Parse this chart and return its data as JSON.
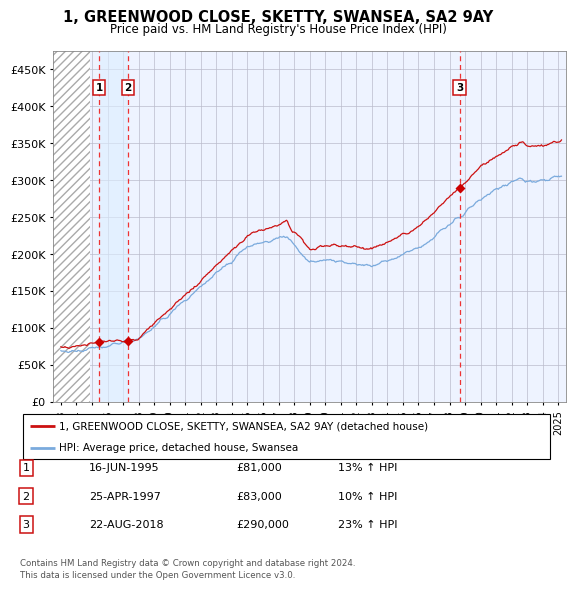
{
  "title_line1": "1, GREENWOOD CLOSE, SKETTY, SWANSEA, SA2 9AY",
  "title_line2": "Price paid vs. HM Land Registry's House Price Index (HPI)",
  "ylim": [
    0,
    475000
  ],
  "yticks": [
    0,
    50000,
    100000,
    150000,
    200000,
    250000,
    300000,
    350000,
    400000,
    450000
  ],
  "ytick_labels": [
    "£0",
    "£50K",
    "£100K",
    "£150K",
    "£200K",
    "£250K",
    "£300K",
    "£350K",
    "£400K",
    "£450K"
  ],
  "transactions": [
    {
      "date_num": 1995.46,
      "price": 81000,
      "label": "1"
    },
    {
      "date_num": 1997.32,
      "price": 83000,
      "label": "2"
    },
    {
      "date_num": 2018.65,
      "price": 290000,
      "label": "3"
    }
  ],
  "vline_color": "#EE3333",
  "dot_color": "#CC0000",
  "hpi_line_color": "#7AAADD",
  "price_line_color": "#CC1111",
  "legend_entries": [
    "1, GREENWOOD CLOSE, SKETTY, SWANSEA, SA2 9AY (detached house)",
    "HPI: Average price, detached house, Swansea"
  ],
  "table_rows": [
    {
      "num": "1",
      "date": "16-JUN-1995",
      "price": "£81,000",
      "hpi": "13% ↑ HPI"
    },
    {
      "num": "2",
      "date": "25-APR-1997",
      "price": "£83,000",
      "hpi": "10% ↑ HPI"
    },
    {
      "num": "3",
      "date": "22-AUG-2018",
      "price": "£290,000",
      "hpi": "23% ↑ HPI"
    }
  ],
  "footnote": "Contains HM Land Registry data © Crown copyright and database right 2024.\nThis data is licensed under the Open Government Licence v3.0.",
  "plot_bg_color": "#EEF3FF",
  "grid_color": "#BBBBCC",
  "xmin": 1992.5,
  "xmax": 2025.5,
  "hatch_end": 1994.9
}
